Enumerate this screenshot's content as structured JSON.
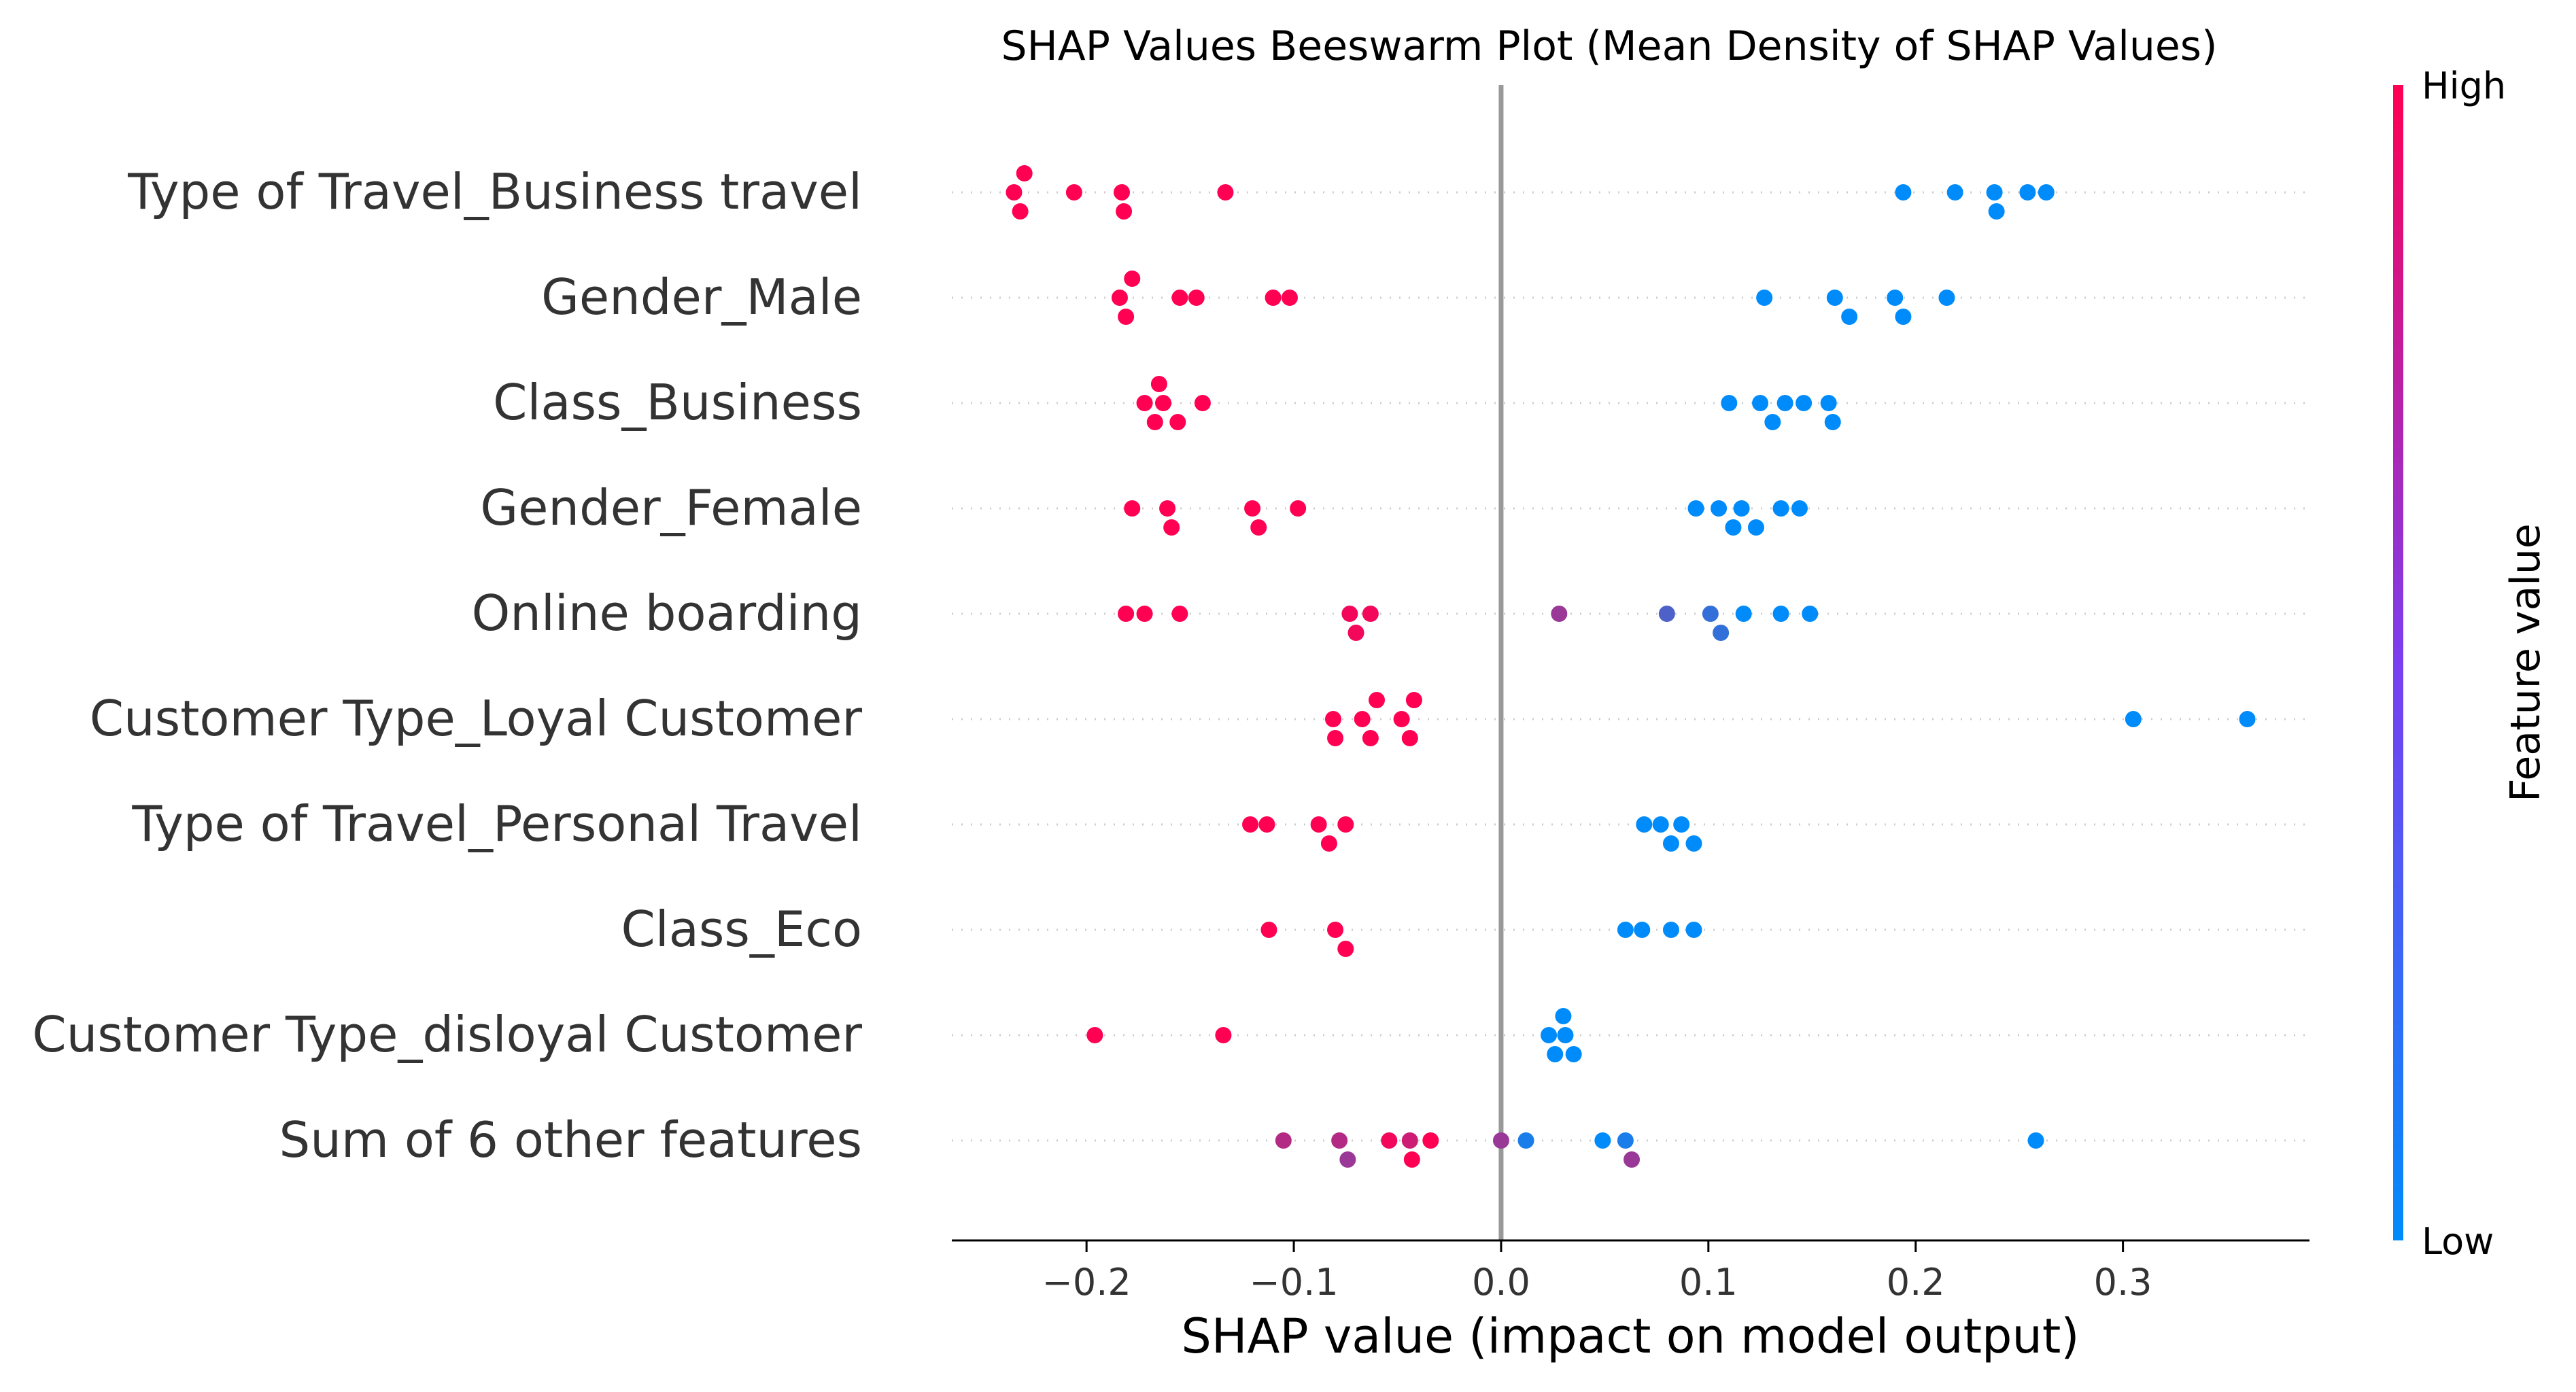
{
  "chart_data": {
    "type": "scatter",
    "title": "SHAP Values Beeswarm Plot (Mean Density of SHAP Values)",
    "xlabel": "SHAP value (impact on model output)",
    "colorbar_label": "Feature value",
    "colorbar_high": "High",
    "colorbar_low": "Low",
    "xlim": [
      -0.265,
      0.39
    ],
    "xticks": [
      -0.2,
      -0.1,
      0.0,
      0.1,
      0.2,
      0.3
    ],
    "xtick_labels": [
      "−0.2",
      "−0.1",
      "0.0",
      "0.1",
      "0.2",
      "0.3"
    ],
    "grid": "horizontal dotted row guides",
    "colors": {
      "high": "#ff0052",
      "low": "#008bfb",
      "zero_line": "#999999"
    },
    "features": [
      {
        "name": "Type of Travel_Business travel",
        "points": [
          [
            -0.235,
            1
          ],
          [
            -0.232,
            1
          ],
          [
            -0.23,
            1
          ],
          [
            -0.206,
            1
          ],
          [
            -0.183,
            1
          ],
          [
            -0.182,
            1
          ],
          [
            -0.133,
            1
          ],
          [
            0.194,
            0
          ],
          [
            0.219,
            0
          ],
          [
            0.238,
            0
          ],
          [
            0.239,
            0
          ],
          [
            0.254,
            0
          ],
          [
            0.263,
            0
          ]
        ]
      },
      {
        "name": "Gender_Male",
        "points": [
          [
            -0.184,
            1
          ],
          [
            -0.181,
            1
          ],
          [
            -0.178,
            1
          ],
          [
            -0.155,
            1
          ],
          [
            -0.147,
            1
          ],
          [
            -0.11,
            1
          ],
          [
            -0.102,
            1
          ],
          [
            0.127,
            0
          ],
          [
            0.161,
            0
          ],
          [
            0.168,
            0
          ],
          [
            0.19,
            0
          ],
          [
            0.194,
            0
          ],
          [
            0.215,
            0
          ]
        ]
      },
      {
        "name": "Class_Business",
        "points": [
          [
            -0.172,
            1
          ],
          [
            -0.167,
            1
          ],
          [
            -0.165,
            1
          ],
          [
            -0.163,
            1
          ],
          [
            -0.156,
            1
          ],
          [
            -0.144,
            1
          ],
          [
            0.11,
            0
          ],
          [
            0.125,
            0
          ],
          [
            0.131,
            0
          ],
          [
            0.137,
            0
          ],
          [
            0.146,
            0
          ],
          [
            0.158,
            0
          ],
          [
            0.16,
            0
          ]
        ]
      },
      {
        "name": "Gender_Female",
        "points": [
          [
            -0.178,
            1
          ],
          [
            -0.161,
            1
          ],
          [
            -0.159,
            1
          ],
          [
            -0.12,
            1
          ],
          [
            -0.117,
            1
          ],
          [
            -0.098,
            1
          ],
          [
            0.094,
            0
          ],
          [
            0.105,
            0
          ],
          [
            0.112,
            0
          ],
          [
            0.116,
            0
          ],
          [
            0.123,
            0
          ],
          [
            0.135,
            0
          ],
          [
            0.144,
            0
          ]
        ]
      },
      {
        "name": "Online boarding",
        "points": [
          [
            -0.181,
            1
          ],
          [
            -0.172,
            1
          ],
          [
            -0.155,
            1
          ],
          [
            -0.073,
            0.95
          ],
          [
            -0.07,
            0.95
          ],
          [
            -0.063,
            0.95
          ],
          [
            0.028,
            0.6
          ],
          [
            0.08,
            0.3
          ],
          [
            0.101,
            0.2
          ],
          [
            0.106,
            0.2
          ],
          [
            0.117,
            0
          ],
          [
            0.135,
            0
          ],
          [
            0.149,
            0
          ]
        ]
      },
      {
        "name": "Customer Type_Loyal Customer",
        "points": [
          [
            -0.081,
            1
          ],
          [
            -0.08,
            1
          ],
          [
            -0.067,
            1
          ],
          [
            -0.063,
            1
          ],
          [
            -0.06,
            1
          ],
          [
            -0.048,
            1
          ],
          [
            -0.044,
            1
          ],
          [
            -0.042,
            1
          ],
          [
            0.305,
            0
          ],
          [
            0.36,
            0
          ]
        ]
      },
      {
        "name": "Type of Travel_Personal Travel",
        "points": [
          [
            -0.121,
            1
          ],
          [
            -0.113,
            1
          ],
          [
            -0.088,
            1
          ],
          [
            -0.083,
            1
          ],
          [
            -0.075,
            1
          ],
          [
            0.069,
            0
          ],
          [
            0.077,
            0
          ],
          [
            0.082,
            0
          ],
          [
            0.087,
            0
          ],
          [
            0.093,
            0
          ]
        ]
      },
      {
        "name": "Class_Eco",
        "points": [
          [
            -0.112,
            1
          ],
          [
            -0.08,
            1
          ],
          [
            -0.075,
            1
          ],
          [
            0.06,
            0
          ],
          [
            0.068,
            0
          ],
          [
            0.082,
            0
          ],
          [
            0.093,
            0
          ]
        ]
      },
      {
        "name": "Customer Type_disloyal Customer",
        "points": [
          [
            -0.196,
            1
          ],
          [
            -0.134,
            1
          ],
          [
            0.023,
            0
          ],
          [
            0.026,
            0
          ],
          [
            0.031,
            0
          ],
          [
            0.035,
            0
          ],
          [
            0.03,
            0
          ]
        ]
      },
      {
        "name": "Sum of 6 other features",
        "points": [
          [
            -0.105,
            0.7
          ],
          [
            -0.078,
            0.7
          ],
          [
            -0.074,
            0.6
          ],
          [
            -0.054,
            0.95
          ],
          [
            -0.044,
            0.8
          ],
          [
            -0.043,
            1
          ],
          [
            -0.034,
            1
          ],
          [
            0.0,
            0.6
          ],
          [
            0.012,
            0.1
          ],
          [
            0.049,
            0
          ],
          [
            0.06,
            0.1
          ],
          [
            0.063,
            0.6
          ],
          [
            0.258,
            0
          ]
        ]
      }
    ]
  }
}
